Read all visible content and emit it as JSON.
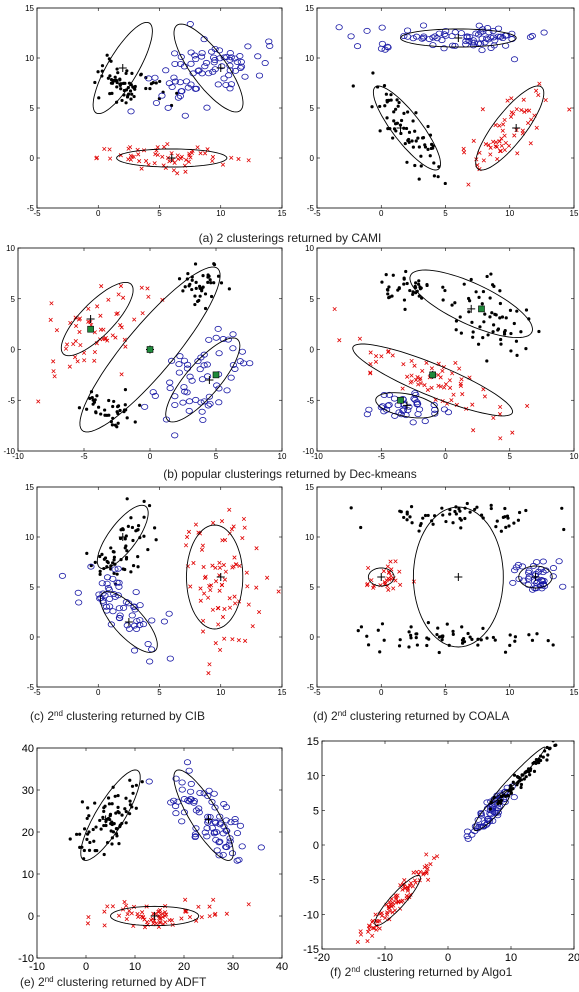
{
  "colors": {
    "black_cluster": "#000000",
    "blue_cluster": "#1a1aa6",
    "red_cluster": "#e00000",
    "center_marker": "#1e8a3a"
  },
  "captions": {
    "a": "(a) 2 clusterings returned by CAMI",
    "b": "(b) popular clusterings returned by Dec-kmeans",
    "c_pre": "(c) 2",
    "c_sup": "nd",
    "c_post": " clustering returned by CIB",
    "d_pre": "(d) 2",
    "d_sup": "nd",
    "d_post": " clustering returned by COALA",
    "e_pre": "(e) 2",
    "e_sup": "nd",
    "e_post": " clustering returned by ADFT",
    "f_pre": "(f) 2",
    "f_sup": "nd",
    "f_post": " clustering returned by Algo1"
  },
  "chart_data": [
    {
      "id": "a1",
      "type": "scatter",
      "xlim": [
        -5,
        15
      ],
      "ylim": [
        -5,
        15
      ],
      "xticks": [
        "-5",
        "0",
        "5",
        "10",
        "15"
      ],
      "yticks": [
        "-5",
        "0",
        "5",
        "10",
        "15"
      ],
      "series": [
        {
          "marker": "dot",
          "color": "#000000",
          "clusters": [
            {
              "cx": 2,
              "cy": 7.5,
              "sx": 0.9,
              "sy": 1.6,
              "n": 70,
              "angle": 60
            }
          ]
        },
        {
          "marker": "circle",
          "color": "#1a1aa6",
          "clusters": [
            {
              "cx": 9,
              "cy": 9,
              "sx": 1.3,
              "sy": 2.5,
              "n": 80,
              "angle": -60
            }
          ]
        },
        {
          "marker": "x",
          "color": "#e00000",
          "clusters": [
            {
              "cx": 6,
              "cy": 0,
              "sx": 3,
              "sy": 0.6,
              "n": 60,
              "angle": 0
            }
          ]
        }
      ],
      "ellipses": [
        {
          "cx": 2,
          "cy": 9,
          "rx": 5,
          "ry": 1.3,
          "angle": 65
        },
        {
          "cx": 9,
          "cy": 9,
          "rx": 5,
          "ry": 1.5,
          "angle": -60
        },
        {
          "cx": 6,
          "cy": 0,
          "rx": 4.5,
          "ry": 0.9,
          "angle": 0
        }
      ],
      "centers": [
        [
          2,
          9
        ],
        [
          10,
          9
        ],
        [
          6,
          0
        ]
      ]
    },
    {
      "id": "a2",
      "type": "scatter",
      "xlim": [
        -5,
        15
      ],
      "ylim": [
        -5,
        15
      ],
      "xticks": [
        "-5",
        "0",
        "5",
        "10",
        "15"
      ],
      "yticks": [
        "-5",
        "0",
        "5",
        "10",
        "15"
      ],
      "series": [
        {
          "marker": "dot",
          "color": "#000000",
          "clusters": [
            {
              "cx": 2,
              "cy": 3,
              "sx": 0.8,
              "sy": 2.6,
              "n": 70,
              "angle": 30
            }
          ]
        },
        {
          "marker": "circle",
          "color": "#1a1aa6",
          "clusters": [
            {
              "cx": 6,
              "cy": 12,
              "sx": 3.5,
              "sy": 0.6,
              "n": 80,
              "angle": 0
            }
          ]
        },
        {
          "marker": "x",
          "color": "#e00000",
          "clusters": [
            {
              "cx": 10,
              "cy": 3,
              "sx": 0.9,
              "sy": 2.5,
              "n": 60,
              "angle": -35
            }
          ]
        }
      ],
      "ellipses": [
        {
          "cx": 2,
          "cy": 3,
          "rx": 4.8,
          "ry": 1.2,
          "angle": -60
        },
        {
          "cx": 6,
          "cy": 12,
          "rx": 4.5,
          "ry": 0.9,
          "angle": 0
        },
        {
          "cx": 10,
          "cy": 3,
          "rx": 4.8,
          "ry": 1.3,
          "angle": 60
        }
      ],
      "centers": [
        [
          1.5,
          3
        ],
        [
          6,
          12
        ],
        [
          10.5,
          3
        ]
      ]
    },
    {
      "id": "b1",
      "type": "scatter",
      "xlim": [
        -10,
        10
      ],
      "ylim": [
        -10,
        10
      ],
      "xticks": [
        "-10",
        "-5",
        "0",
        "5",
        "10"
      ],
      "yticks": [
        "-10",
        "-5",
        "0",
        "5",
        "10"
      ],
      "series": [
        {
          "marker": "dot",
          "color": "#000000",
          "clusters": [
            {
              "cx": 4,
              "cy": 6.5,
              "sx": 0.9,
              "sy": 1,
              "n": 40,
              "angle": 0
            },
            {
              "cx": -3,
              "cy": -6,
              "sx": 1,
              "sy": 1,
              "n": 40,
              "angle": 0
            }
          ]
        },
        {
          "marker": "x",
          "color": "#e00000",
          "clusters": [
            {
              "cx": -4,
              "cy": 2,
              "sx": 1.6,
              "sy": 2.6,
              "n": 60,
              "angle": -35
            }
          ]
        },
        {
          "marker": "circle",
          "color": "#1a1aa6",
          "clusters": [
            {
              "cx": 4,
              "cy": -3,
              "sx": 1.6,
              "sy": 2.8,
              "n": 60,
              "angle": -35
            }
          ]
        }
      ],
      "ellipses": [
        {
          "cx": -4,
          "cy": 3,
          "rx": 4.3,
          "ry": 1.4,
          "angle": 55
        },
        {
          "cx": 0,
          "cy": 0,
          "rx": 9.5,
          "ry": 2,
          "angle": 58
        },
        {
          "cx": 4,
          "cy": -3,
          "rx": 4.8,
          "ry": 1.4,
          "angle": 58
        }
      ],
      "centers": [
        [
          -4.5,
          3
        ],
        [
          0,
          0
        ],
        [
          4.5,
          -3
        ]
      ],
      "squares": [
        [
          -4.5,
          2
        ],
        [
          0,
          0
        ],
        [
          5,
          -2.5
        ]
      ]
    },
    {
      "id": "b2",
      "type": "scatter",
      "xlim": [
        -10,
        10
      ],
      "ylim": [
        -10,
        10
      ],
      "xticks": [
        "-10",
        "-5",
        "0",
        "5",
        "10"
      ],
      "yticks": [
        "-10",
        "-5",
        "0",
        "5",
        "10"
      ],
      "series": [
        {
          "marker": "dot",
          "color": "#000000",
          "clusters": [
            {
              "cx": -3,
              "cy": 6,
              "sx": 1.2,
              "sy": 0.8,
              "n": 40,
              "angle": 0
            },
            {
              "cx": 4,
              "cy": 3,
              "sx": 1.5,
              "sy": 2.5,
              "n": 60,
              "angle": 30
            }
          ]
        },
        {
          "marker": "x",
          "color": "#e00000",
          "clusters": [
            {
              "cx": -1,
              "cy": -3,
              "sx": 3.5,
              "sy": 1.2,
              "n": 70,
              "angle": -28
            }
          ]
        },
        {
          "marker": "circle",
          "color": "#1a1aa6",
          "clusters": [
            {
              "cx": -3,
              "cy": -5.5,
              "sx": 1.6,
              "sy": 0.8,
              "n": 40,
              "angle": -15
            }
          ]
        }
      ],
      "ellipses": [
        {
          "cx": 2,
          "cy": 4.5,
          "rx": 5.5,
          "ry": 1.9,
          "angle": -32
        },
        {
          "cx": -1,
          "cy": -3,
          "rx": 7,
          "ry": 1.5,
          "angle": -28
        },
        {
          "cx": -3,
          "cy": -5.5,
          "rx": 2.5,
          "ry": 1.1,
          "angle": -15
        }
      ],
      "centers": [
        [
          2,
          4
        ],
        [
          -1,
          -2.5
        ],
        [
          -3,
          -5.5
        ]
      ],
      "squares": [
        [
          2.8,
          4
        ],
        [
          -1,
          -2.5
        ],
        [
          -3.5,
          -5
        ]
      ]
    },
    {
      "id": "c1",
      "type": "scatter",
      "xlim": [
        -5,
        15
      ],
      "ylim": [
        -5,
        15
      ],
      "xticks": [
        "-5",
        "0",
        "5",
        "10",
        "15"
      ],
      "yticks": [
        "-5",
        "0",
        "5",
        "10",
        "15"
      ],
      "series": [
        {
          "marker": "dot",
          "color": "#000000",
          "clusters": [
            {
              "cx": 2,
              "cy": 9,
              "sx": 1,
              "sy": 2.3,
              "n": 60,
              "angle": -30
            }
          ]
        },
        {
          "marker": "circle",
          "color": "#1a1aa6",
          "clusters": [
            {
              "cx": 2,
              "cy": 3,
              "sx": 1,
              "sy": 2.3,
              "n": 60,
              "angle": 35
            }
          ]
        },
        {
          "marker": "x",
          "color": "#e00000",
          "clusters": [
            {
              "cx": 10,
              "cy": 6,
              "sx": 1.4,
              "sy": 3.6,
              "n": 80,
              "angle": 0
            }
          ]
        }
      ],
      "ellipses": [
        {
          "cx": 2,
          "cy": 10,
          "rx": 3.6,
          "ry": 1.2,
          "angle": 60
        },
        {
          "cx": 2.5,
          "cy": 1.5,
          "rx": 3.6,
          "ry": 1.3,
          "angle": -55
        },
        {
          "cx": 9.5,
          "cy": 6,
          "rx": 2.3,
          "ry": 5.2,
          "angle": 0
        }
      ],
      "centers": [
        [
          2,
          10
        ],
        [
          2.5,
          1.5
        ],
        [
          10,
          6
        ]
      ]
    },
    {
      "id": "c2",
      "type": "scatter",
      "xlim": [
        -5,
        15
      ],
      "ylim": [
        -5,
        15
      ],
      "xticks": [
        "-5",
        "0",
        "5",
        "10",
        "15"
      ],
      "yticks": [
        "-5",
        "0",
        "5",
        "10",
        "15"
      ],
      "series": [
        {
          "marker": "dot",
          "color": "#000000",
          "clusters": [
            {
              "cx": 6,
              "cy": 12,
              "sx": 3.5,
              "sy": 0.8,
              "n": 60,
              "angle": 0
            },
            {
              "cx": 6,
              "cy": 0,
              "sx": 3.5,
              "sy": 0.8,
              "n": 60,
              "angle": 0
            }
          ]
        },
        {
          "marker": "x",
          "color": "#e00000",
          "clusters": [
            {
              "cx": 0,
              "cy": 6,
              "sx": 0.8,
              "sy": 0.8,
              "n": 30,
              "angle": 0
            }
          ]
        },
        {
          "marker": "circle",
          "color": "#1a1aa6",
          "clusters": [
            {
              "cx": 12,
              "cy": 6,
              "sx": 0.9,
              "sy": 0.9,
              "n": 40,
              "angle": 0
            }
          ]
        }
      ],
      "ellipses": [
        {
          "cx": 6,
          "cy": 6,
          "rx": 3.5,
          "ry": 7,
          "angle": 0
        },
        {
          "cx": 0,
          "cy": 6,
          "rx": 1,
          "ry": 0.9,
          "angle": 0
        },
        {
          "cx": 12,
          "cy": 6,
          "rx": 1.3,
          "ry": 1.1,
          "angle": 0
        }
      ],
      "centers": [
        [
          6,
          6
        ],
        [
          0,
          6
        ],
        [
          12,
          6
        ]
      ]
    },
    {
      "id": "e1",
      "type": "scatter",
      "xlim": [
        -10,
        40
      ],
      "ylim": [
        -10,
        40
      ],
      "xticks": [
        "-10",
        "0",
        "10",
        "20",
        "30",
        "40"
      ],
      "yticks": [
        "-10",
        "0",
        "10",
        "20",
        "30",
        "40"
      ],
      "series": [
        {
          "marker": "dot",
          "color": "#000000",
          "clusters": [
            {
              "cx": 5,
              "cy": 23,
              "sx": 2.5,
              "sy": 6,
              "n": 80,
              "angle": -30
            }
          ]
        },
        {
          "marker": "circle",
          "color": "#1a1aa6",
          "clusters": [
            {
              "cx": 25,
              "cy": 23,
              "sx": 3,
              "sy": 6,
              "n": 80,
              "angle": 30
            }
          ]
        },
        {
          "marker": "x",
          "color": "#e00000",
          "clusters": [
            {
              "cx": 15,
              "cy": 0,
              "sx": 7,
              "sy": 1.5,
              "n": 70,
              "angle": 0
            }
          ]
        }
      ],
      "ellipses": [
        {
          "cx": 5,
          "cy": 24,
          "rx": 12,
          "ry": 3,
          "angle": 63
        },
        {
          "cx": 24,
          "cy": 24,
          "rx": 12,
          "ry": 3,
          "angle": -63
        },
        {
          "cx": 14,
          "cy": 0,
          "rx": 9,
          "ry": 2.3,
          "angle": 0
        }
      ],
      "centers": [
        [
          4,
          23
        ],
        [
          25,
          23
        ],
        [
          14,
          0
        ]
      ]
    },
    {
      "id": "f1",
      "type": "scatter",
      "xlim": [
        -20,
        20
      ],
      "ylim": [
        -15,
        15
      ],
      "xticks": [
        "-20",
        "-10",
        "0",
        "10",
        "20"
      ],
      "yticks": [
        "-15",
        "-10",
        "-5",
        "0",
        "5",
        "10",
        "15"
      ],
      "series": [
        {
          "marker": "x",
          "color": "#e00000",
          "clusters": [
            {
              "cx": -8,
              "cy": -8,
              "sx": 5,
              "sy": 0.6,
              "n": 90,
              "angle": 45
            }
          ]
        },
        {
          "marker": "circle",
          "color": "#1a1aa6",
          "clusters": [
            {
              "cx": 7,
              "cy": 5,
              "sx": 2.6,
              "sy": 0.7,
              "n": 60,
              "angle": 45
            }
          ]
        },
        {
          "marker": "dot",
          "color": "#000000",
          "clusters": [
            {
              "cx": 12,
              "cy": 10,
              "sx": 4,
              "sy": 0.4,
              "n": 70,
              "angle": 43
            }
          ]
        }
      ],
      "ellipses": [
        {
          "cx": -8,
          "cy": -8,
          "rx": 5,
          "ry": 1.1,
          "angle": 45
        },
        {
          "cx": 7,
          "cy": 5,
          "rx": 4,
          "ry": 1,
          "angle": 45
        },
        {
          "cx": 11,
          "cy": 10,
          "rx": 6,
          "ry": 0.6,
          "angle": 43
        }
      ],
      "centers": []
    }
  ]
}
